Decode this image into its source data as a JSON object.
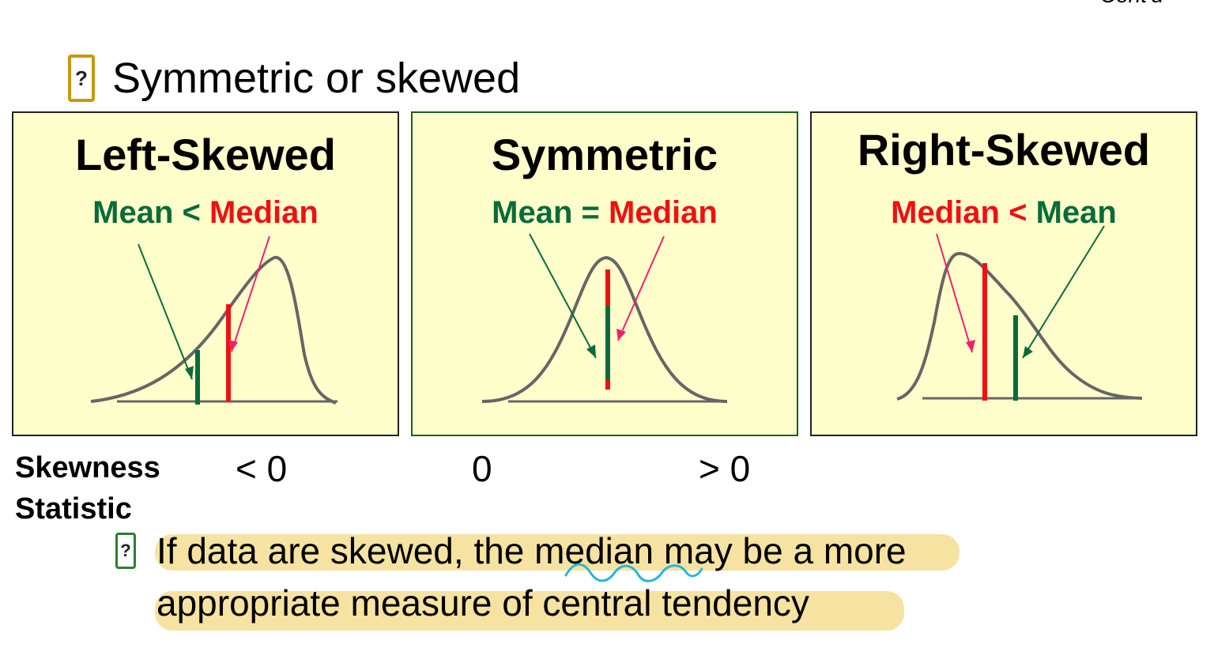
{
  "corner_text": "Cont'd",
  "heading": {
    "text": "Symmetric or skewed",
    "bullet_icon": "question-box-icon"
  },
  "panels": [
    {
      "title": "Left-Skewed",
      "relation": {
        "left": "Mean",
        "op": "<",
        "right": "Median"
      }
    },
    {
      "title": "Symmetric",
      "relation": {
        "left": "Mean",
        "op": "=",
        "right": "Median"
      }
    },
    {
      "title": "Right-Skewed",
      "relation": {
        "left": "Median",
        "op": "<",
        "right": "Mean"
      }
    }
  ],
  "skewness": {
    "label_line1": "Skewness",
    "label_line2": "Statistic",
    "values": [
      "< 0",
      "0",
      "> 0"
    ]
  },
  "note": {
    "bullet_icon": "question-box-icon",
    "line1": "If data are skewed, the median may be a more",
    "line2": "appropriate measure of central tendency"
  },
  "colors": {
    "mean": "#0a6b3a",
    "median": "#ee1111",
    "curve": "#666666",
    "panel_bg": "#ffffcc",
    "highlight": "#f6e3a1",
    "squiggle": "#29b6d6"
  }
}
